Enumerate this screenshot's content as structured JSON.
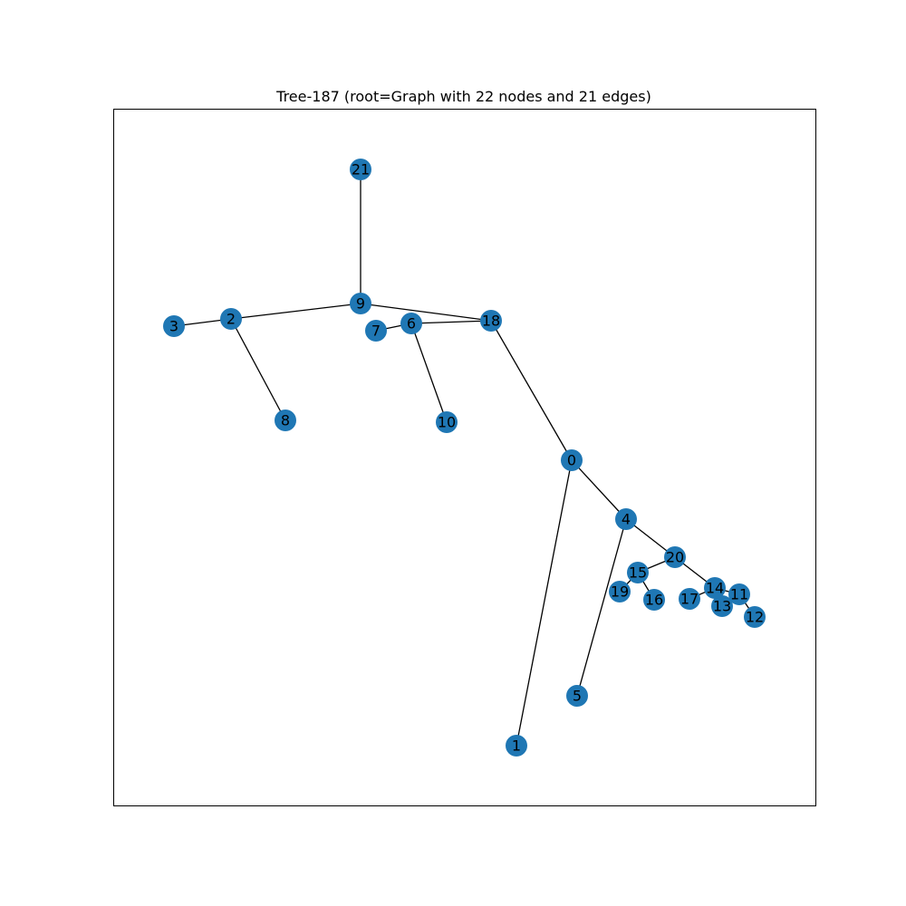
{
  "title": "Tree-187 (root=Graph with 22 nodes and 21 edges)",
  "colors": {
    "node_fill": "#1f77b4",
    "edge": "#000000",
    "frame": "#000000",
    "background": "#ffffff"
  },
  "graph": {
    "nodes": [
      "0",
      "1",
      "2",
      "3",
      "4",
      "5",
      "6",
      "7",
      "8",
      "9",
      "10",
      "11",
      "12",
      "13",
      "14",
      "15",
      "16",
      "17",
      "18",
      "19",
      "20",
      "21"
    ],
    "edges": [
      [
        "21",
        "9"
      ],
      [
        "9",
        "2"
      ],
      [
        "9",
        "18"
      ],
      [
        "2",
        "3"
      ],
      [
        "2",
        "8"
      ],
      [
        "18",
        "6"
      ],
      [
        "6",
        "7"
      ],
      [
        "6",
        "10"
      ],
      [
        "18",
        "0"
      ],
      [
        "0",
        "1"
      ],
      [
        "0",
        "4"
      ],
      [
        "4",
        "5"
      ],
      [
        "4",
        "20"
      ],
      [
        "20",
        "15"
      ],
      [
        "15",
        "19"
      ],
      [
        "15",
        "16"
      ],
      [
        "20",
        "14"
      ],
      [
        "14",
        "17"
      ],
      [
        "14",
        "11"
      ],
      [
        "11",
        "13"
      ],
      [
        "11",
        "12"
      ]
    ]
  }
}
